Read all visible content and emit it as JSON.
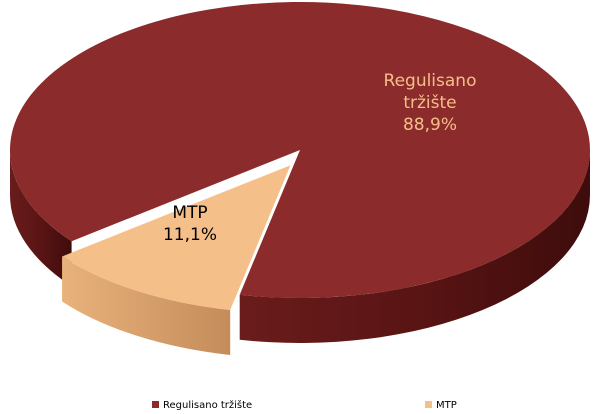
{
  "chart_data": {
    "type": "pie",
    "categories": [
      "Regulisano tržište",
      "MTP"
    ],
    "values": [
      88.9,
      11.1
    ],
    "value_labels": [
      "88,9%",
      "11,1%"
    ],
    "colors": [
      "#8b2b2b",
      "#f5bf8a"
    ],
    "legend": "bottom"
  }
}
